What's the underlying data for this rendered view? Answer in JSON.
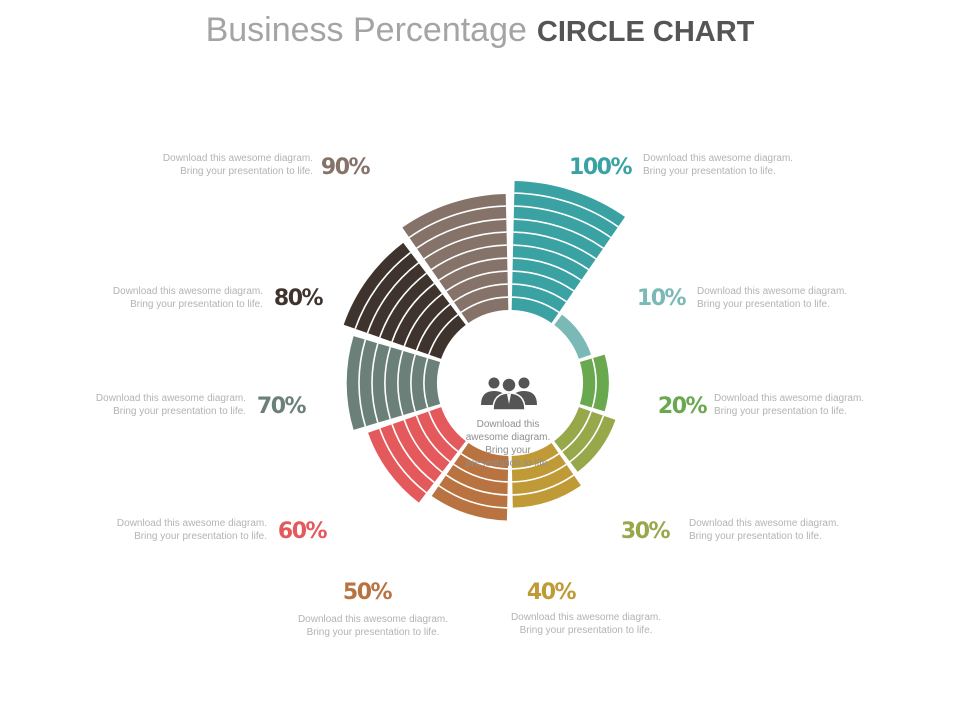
{
  "title": {
    "light": "Business Percentage",
    "bold": "CIRCLE CHART"
  },
  "center": {
    "icon": "people-group-icon",
    "lines": [
      "Download this",
      "awesome diagram.",
      "Bring your",
      "presentation to life."
    ]
  },
  "chart_data": {
    "type": "pie",
    "categories": [
      "100%",
      "10%",
      "20%",
      "30%",
      "40%",
      "50%",
      "60%",
      "70%",
      "80%",
      "90%"
    ],
    "values": [
      100,
      10,
      20,
      30,
      40,
      50,
      60,
      70,
      80,
      90
    ],
    "colors": [
      "#3aa2a3",
      "#7ab9b6",
      "#6aa84f",
      "#97a84b",
      "#c09a36",
      "#b87340",
      "#e45a5c",
      "#6c807a",
      "#3f342d",
      "#857369"
    ],
    "descriptions": [
      [
        "Download this awesome diagram.",
        "Bring your presentation to life."
      ],
      [
        "Download this awesome diagram.",
        "Bring your presentation to life."
      ],
      [
        "Download this awesome diagram.",
        "Bring your presentation to life."
      ],
      [
        "Download this awesome diagram.",
        "Bring your presentation to life."
      ],
      [
        "Download this awesome diagram.",
        "Bring your presentation to life."
      ],
      [
        "Download this awesome diagram.",
        "Bring your presentation to life."
      ],
      [
        "Download this awesome diagram.",
        "Bring your presentation to life."
      ],
      [
        "Download this awesome diagram.",
        "Bring your presentation to life."
      ],
      [
        "Download this awesome diagram.",
        "Bring your presentation to life."
      ],
      [
        "Download this awesome diagram.",
        "Bring your presentation to life."
      ]
    ]
  }
}
